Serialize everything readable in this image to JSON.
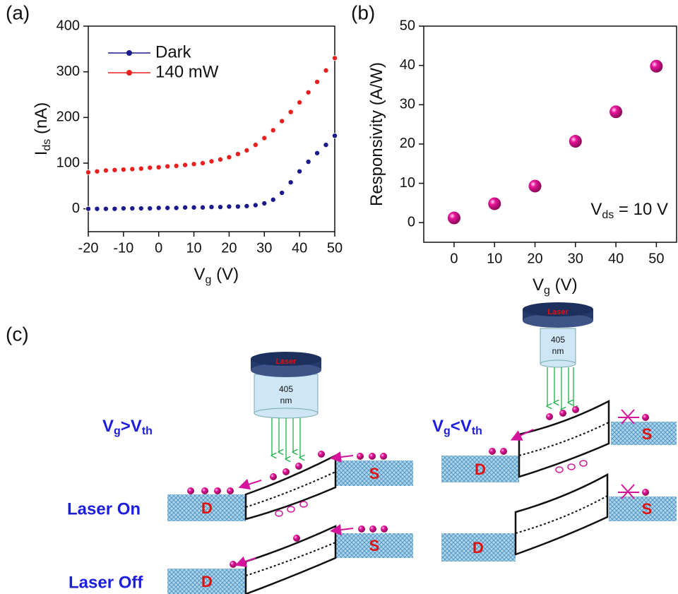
{
  "chart_data": [
    {
      "type": "line",
      "panel_label": "(a)",
      "x_label": [
        "V",
        "g",
        " (V)"
      ],
      "y_label": [
        "I",
        "ds",
        " (nA)"
      ],
      "x": [
        -20,
        -17.5,
        -15,
        -12.5,
        -10,
        -7.5,
        -5,
        -2.5,
        0,
        2.5,
        5,
        7.5,
        10,
        12.5,
        15,
        17.5,
        20,
        22.5,
        25,
        27.5,
        30,
        32.5,
        35,
        37.5,
        40,
        42.5,
        45,
        47.5,
        50
      ],
      "series": [
        {
          "name": "Dark",
          "color": "#1a1a8c",
          "values": [
            0,
            0,
            0,
            0,
            1,
            1,
            1,
            1,
            2,
            2,
            2,
            3,
            3,
            3,
            4,
            4,
            5,
            5,
            6,
            8,
            12,
            20,
            35,
            58,
            82,
            103,
            122,
            140,
            160
          ]
        },
        {
          "name": "140 mW",
          "color": "#e8201e",
          "values": [
            80,
            82,
            84,
            85,
            86,
            87,
            88,
            90,
            91,
            93,
            94,
            96,
            98,
            100,
            104,
            108,
            113,
            120,
            128,
            140,
            155,
            172,
            192,
            212,
            233,
            255,
            278,
            303,
            330
          ]
        }
      ],
      "xlim": [
        -20,
        50
      ],
      "xticks": [
        -20,
        -10,
        0,
        10,
        20,
        30,
        40,
        50
      ],
      "ylim": [
        -50,
        400
      ],
      "yticks": [
        0,
        100,
        200,
        300,
        400
      ],
      "legend": "upper left"
    },
    {
      "type": "scatter",
      "panel_label": "(b)",
      "x_label": [
        "V",
        "g",
        " (V)"
      ],
      "y_label": [
        "Responsivity (A/W)"
      ],
      "annotation": [
        "V",
        "ds",
        " = 10 V"
      ],
      "x": [
        0,
        10,
        20,
        30,
        40,
        50
      ],
      "series": [
        {
          "color": "#e8139a",
          "values": [
            1.2,
            4.8,
            9.3,
            20.7,
            28.2,
            39.8
          ]
        }
      ],
      "xlim": [
        -7.5,
        55
      ],
      "xticks": [
        0,
        10,
        20,
        30,
        40,
        50
      ],
      "ylim": [
        -5,
        50
      ],
      "yticks": [
        0,
        10,
        20,
        30,
        40,
        50
      ]
    }
  ],
  "diagram": {
    "panel_label": "(c)",
    "conditions": [
      [
        "V",
        "g",
        ">V",
        "th"
      ],
      [
        "V",
        "g",
        "<V",
        "th"
      ]
    ],
    "states": [
      "Laser On",
      "Laser Off"
    ],
    "lasers": [
      {
        "name": "Laser",
        "wavelength": [
          "405",
          "nm"
        ]
      },
      {
        "name": "Laser",
        "wavelength": [
          "405",
          "nm"
        ]
      }
    ],
    "blocks": [
      {
        "drain": "D",
        "source": "S"
      },
      {
        "drain": "D",
        "source": "S"
      },
      {
        "drain": "D",
        "source": "S"
      },
      {
        "drain": "D",
        "source": "S"
      }
    ]
  }
}
